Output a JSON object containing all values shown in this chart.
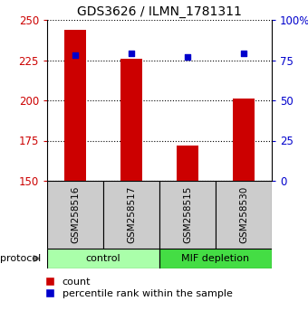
{
  "title": "GDS3626 / ILMN_1781311",
  "samples": [
    "GSM258516",
    "GSM258517",
    "GSM258515",
    "GSM258530"
  ],
  "counts": [
    244,
    226,
    172,
    201
  ],
  "percentiles": [
    78,
    79,
    77,
    79
  ],
  "ylim_left": [
    150,
    250
  ],
  "ylim_right": [
    0,
    100
  ],
  "yticks_left": [
    150,
    175,
    200,
    225,
    250
  ],
  "yticks_right": [
    0,
    25,
    50,
    75,
    100
  ],
  "ytick_labels_right": [
    "0",
    "25",
    "50",
    "75",
    "100%"
  ],
  "bar_color": "#cc0000",
  "dot_color": "#0000cc",
  "groups": [
    {
      "label": "control",
      "samples": [
        0,
        1
      ],
      "color": "#aaffaa"
    },
    {
      "label": "MIF depletion",
      "samples": [
        2,
        3
      ],
      "color": "#44dd44"
    }
  ],
  "legend_count_label": "count",
  "legend_pct_label": "percentile rank within the sample",
  "protocol_label": "protocol",
  "sample_box_color": "#cccccc",
  "background_color": "#ffffff",
  "title_fontsize": 10,
  "axis_label_color_left": "#cc0000",
  "axis_label_color_right": "#0000cc"
}
